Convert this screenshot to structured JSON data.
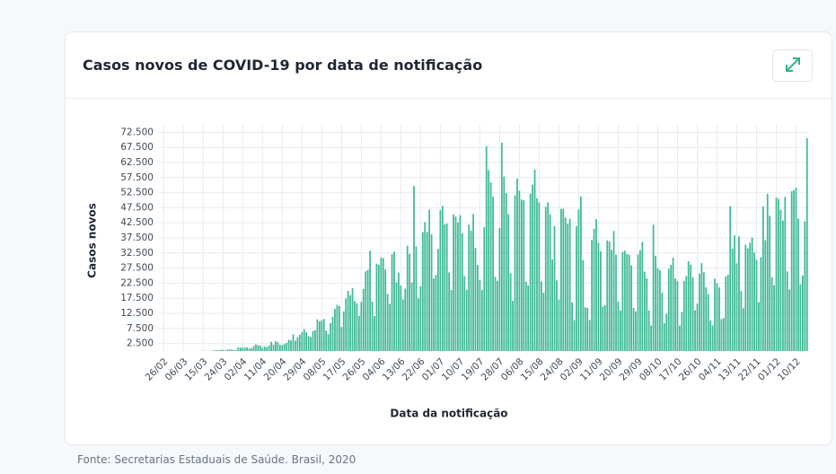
{
  "chart_data": {
    "type": "bar",
    "title": "Casos novos de COVID-19 por data de notificação",
    "y_label": "Casos novos",
    "x_label": "Data da notificação",
    "source": "Fonte: Secretarias Estaduais de Saúde. Brasil, 2020",
    "color": "#3fba95",
    "grid": true,
    "ylim": [
      0,
      75000
    ],
    "yticks": [
      {
        "value": 2500,
        "label": "2.500"
      },
      {
        "value": 7500,
        "label": "7.500"
      },
      {
        "value": 12500,
        "label": "12.500"
      },
      {
        "value": 17500,
        "label": "17.500"
      },
      {
        "value": 22500,
        "label": "22.500"
      },
      {
        "value": 27500,
        "label": "27.500"
      },
      {
        "value": 32500,
        "label": "32.500"
      },
      {
        "value": 37500,
        "label": "37.500"
      },
      {
        "value": 42500,
        "label": "42.500"
      },
      {
        "value": 47500,
        "label": "47.500"
      },
      {
        "value": 52500,
        "label": "52.500"
      },
      {
        "value": 57500,
        "label": "57.500"
      },
      {
        "value": 62500,
        "label": "62.500"
      },
      {
        "value": 67500,
        "label": "67.500"
      },
      {
        "value": 72500,
        "label": "72.500"
      }
    ],
    "categories": [
      "26/02",
      null,
      null,
      null,
      null,
      null,
      null,
      null,
      null,
      "06/03",
      null,
      null,
      null,
      null,
      null,
      null,
      null,
      null,
      "15/03",
      null,
      null,
      null,
      null,
      null,
      null,
      null,
      null,
      "24/03",
      null,
      null,
      null,
      null,
      null,
      null,
      null,
      null,
      "02/04",
      null,
      null,
      null,
      null,
      null,
      null,
      null,
      null,
      "11/04",
      null,
      null,
      null,
      null,
      null,
      null,
      null,
      null,
      "20/04",
      null,
      null,
      null,
      null,
      null,
      null,
      null,
      null,
      "29/04",
      null,
      null,
      null,
      null,
      null,
      null,
      null,
      null,
      "08/05",
      null,
      null,
      null,
      null,
      null,
      null,
      null,
      null,
      "17/05",
      null,
      null,
      null,
      null,
      null,
      null,
      null,
      null,
      "26/05",
      null,
      null,
      null,
      null,
      null,
      null,
      null,
      null,
      "04/06",
      null,
      null,
      null,
      null,
      null,
      null,
      null,
      null,
      "13/06",
      null,
      null,
      null,
      null,
      null,
      null,
      null,
      null,
      "22/06",
      null,
      null,
      null,
      null,
      null,
      null,
      null,
      null,
      "01/07",
      null,
      null,
      null,
      null,
      null,
      null,
      null,
      null,
      "10/07",
      null,
      null,
      null,
      null,
      null,
      null,
      null,
      null,
      "19/07",
      null,
      null,
      null,
      null,
      null,
      null,
      null,
      null,
      "28/07",
      null,
      null,
      null,
      null,
      null,
      null,
      null,
      null,
      "06/08",
      null,
      null,
      null,
      null,
      null,
      null,
      null,
      null,
      "15/08",
      null,
      null,
      null,
      null,
      null,
      null,
      null,
      null,
      "24/08",
      null,
      null,
      null,
      null,
      null,
      null,
      null,
      null,
      "02/09",
      null,
      null,
      null,
      null,
      null,
      null,
      null,
      null,
      "11/09",
      null,
      null,
      null,
      null,
      null,
      null,
      null,
      null,
      "20/09",
      null,
      null,
      null,
      null,
      null,
      null,
      null,
      null,
      "29/09",
      null,
      null,
      null,
      null,
      null,
      null,
      null,
      null,
      "08/10",
      null,
      null,
      null,
      null,
      null,
      null,
      null,
      null,
      "17/10",
      null,
      null,
      null,
      null,
      null,
      null,
      null,
      null,
      "26/10",
      null,
      null,
      null,
      null,
      null,
      null,
      null,
      null,
      "04/11",
      null,
      null,
      null,
      null,
      null,
      null,
      null,
      null,
      "13/11",
      null,
      null,
      null,
      null,
      null,
      null,
      null,
      null,
      "22/11",
      null,
      null,
      null,
      null,
      null,
      null,
      null,
      null,
      "01/12",
      null,
      null,
      null,
      null,
      null,
      null,
      null,
      null,
      "10/12",
      null,
      null,
      null,
      null,
      null
    ],
    "values": [
      1,
      0,
      0,
      1,
      0,
      0,
      0,
      1,
      5,
      5,
      5,
      4,
      0,
      5,
      18,
      25,
      21,
      23,
      79,
      34,
      57,
      57,
      137,
      193,
      283,
      224,
      418,
      345,
      232,
      482,
      502,
      487,
      352,
      323,
      1138,
      1119,
      1074,
      1146,
      1222,
      852,
      926,
      1661,
      2210,
      1930,
      1781,
      1089,
      1442,
      1261,
      1832,
      3058,
      2105,
      3257,
      2917,
      2055,
      1927,
      2336,
      2678,
      3735,
      3503,
      5514,
      3379,
      4613,
      5385,
      6276,
      7218,
      6209,
      4970,
      4588,
      6633,
      6935,
      10503,
      9888,
      10222,
      10611,
      6760,
      5632,
      9258,
      11385,
      13944,
      15305,
      14919,
      7938,
      13140,
      17408,
      19951,
      18508,
      20803,
      16508,
      15813,
      11687,
      16324,
      20599,
      26417,
      26928,
      33274,
      16409,
      11598,
      28936,
      28633,
      30925,
      30830,
      27075,
      18912,
      15654,
      32091,
      32913,
      22765,
      25982,
      21704,
      17110,
      20647,
      34918,
      32188,
      22765,
      54771,
      34666,
      17459,
      21432,
      39436,
      42725,
      39483,
      46860,
      38693,
      24052,
      25234,
      33846,
      46712,
      48105,
      41988,
      42223,
      26051,
      20229,
      45305,
      44571,
      42619,
      45048,
      39023,
      24831,
      20286,
      41857,
      39924,
      45403,
      34177,
      28532,
      23529,
      20257,
      41008,
      67860,
      59961,
      55891,
      51147,
      24578,
      23284,
      40816,
      69074,
      57837,
      52383,
      45392,
      25800,
      16641,
      51603,
      57152,
      53139,
      50230,
      49970,
      23010,
      21703,
      52160,
      55155,
      60091,
      50644,
      49298,
      23101,
      19373,
      47784,
      49298,
      45323,
      30355,
      41350,
      23421,
      17078,
      47134,
      47161,
      44235,
      42229,
      43812,
      16158,
      10273,
      41350,
      46934,
      51194,
      30168,
      14521,
      14279,
      10273,
      36820,
      40557,
      43718,
      35816,
      33057,
      14768,
      15155,
      36653,
      36303,
      33536,
      39797,
      31911,
      16389,
      13439,
      32817,
      33281,
      32129,
      31911,
      28378,
      14318,
      13155,
      32058,
      33413,
      36157,
      26310,
      24062,
      13446,
      8456,
      41906,
      31553,
      27444,
      26749,
      19339,
      9224,
      12342,
      27235,
      28523,
      30914,
      24062,
      23227,
      8430,
      12930,
      23227,
      24818,
      29787,
      28629,
      24430,
      13493,
      15726,
      25659,
      29138,
      26106,
      21124,
      18947,
      10100,
      8501,
      23976,
      22391,
      21073,
      10554,
      10917,
      24744,
      25289,
      48014,
      33922,
      38307,
      29070,
      38012,
      19932,
      14200,
      35294,
      34028,
      35918,
      37614,
      32622,
      30260,
      16207,
      31100,
      47898,
      36751,
      52130,
      44829,
      24468,
      21825,
      50909,
      50434,
      46884,
      43225,
      51088,
      26363,
      20371,
      52955,
      53347,
      54195,
      43900,
      22129,
      25019,
      43000,
      70574
    ]
  }
}
